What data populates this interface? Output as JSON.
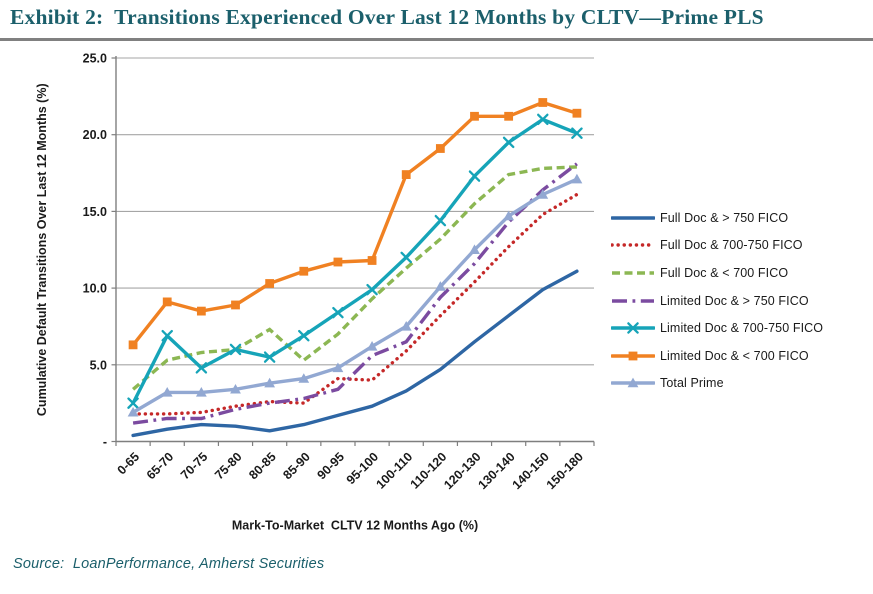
{
  "exhibit": {
    "title": "Exhibit 2:  Transitions Experienced Over Last 12 Months by CLTV—Prime PLS",
    "source": "Source:  LoanPerformance, Amherst Securities"
  },
  "chart_data": {
    "type": "line",
    "title": "",
    "xlabel": "Mark-To-Market  CLTV 12 Months Ago (%)",
    "ylabel": "Cumulative Default Transitions Over Last 12 Months (%)",
    "ylim": [
      0,
      25
    ],
    "ytick_interval": 5,
    "ytick_labels": [
      "-",
      "5.0",
      "10.0",
      "15.0",
      "20.0",
      "25.0"
    ],
    "grid": true,
    "legend_position": "right",
    "axis_color": "#7f7f7f",
    "gridline_color": "#a6a6a6",
    "categories": [
      "0-65",
      "65-70",
      "70-75",
      "75-80",
      "80-85",
      "85-90",
      "90-95",
      "95-100",
      "100-110",
      "110-120",
      "120-130",
      "130-140",
      "140-150",
      "150-180"
    ],
    "series": [
      {
        "name": "Full Doc & > 750 FICO",
        "color": "#2E66A4",
        "line": "solid",
        "marker": "none",
        "values": [
          0.4,
          0.8,
          1.1,
          1.0,
          0.7,
          1.1,
          1.7,
          2.3,
          3.3,
          4.7,
          6.5,
          8.2,
          9.9,
          11.1
        ]
      },
      {
        "name": "Full Doc & 700-750 FICO",
        "color": "#C52828",
        "line": "dotted",
        "marker": "none",
        "values": [
          1.8,
          1.8,
          1.9,
          2.3,
          2.6,
          2.5,
          4.1,
          4.0,
          5.9,
          8.2,
          10.4,
          12.7,
          14.8,
          16.1
        ]
      },
      {
        "name": "Full Doc & < 700 FICO",
        "color": "#8CB753",
        "line": "dashed",
        "marker": "none",
        "values": [
          3.4,
          5.3,
          5.8,
          6.0,
          7.3,
          5.3,
          7.0,
          9.3,
          11.3,
          13.2,
          15.5,
          17.4,
          17.8,
          17.9
        ]
      },
      {
        "name": "Limited Doc & > 750 FICO",
        "color": "#7B4BA0",
        "line": "dashdot",
        "marker": "none",
        "values": [
          1.2,
          1.5,
          1.5,
          2.1,
          2.5,
          2.8,
          3.4,
          5.6,
          6.5,
          9.4,
          11.6,
          14.3,
          16.4,
          18.1
        ]
      },
      {
        "name": "Limited Doc & 700-750 FICO",
        "color": "#16A4B8",
        "line": "solid",
        "marker": "x",
        "values": [
          2.5,
          6.9,
          4.8,
          6.0,
          5.5,
          6.9,
          8.4,
          9.9,
          12.0,
          14.4,
          17.3,
          19.5,
          21.0,
          20.1
        ]
      },
      {
        "name": "Limited Doc & < 700 FICO",
        "color": "#F08122",
        "line": "solid",
        "marker": "square",
        "values": [
          6.3,
          9.1,
          8.5,
          8.9,
          10.3,
          11.1,
          11.7,
          11.8,
          17.4,
          19.1,
          21.2,
          21.2,
          22.1,
          21.4
        ]
      },
      {
        "name": "Total Prime",
        "color": "#92A8D2",
        "line": "solid",
        "marker": "triangle",
        "values": [
          1.9,
          3.2,
          3.2,
          3.4,
          3.8,
          4.1,
          4.8,
          6.2,
          7.5,
          10.1,
          12.5,
          14.7,
          16.1,
          17.1
        ]
      }
    ]
  }
}
